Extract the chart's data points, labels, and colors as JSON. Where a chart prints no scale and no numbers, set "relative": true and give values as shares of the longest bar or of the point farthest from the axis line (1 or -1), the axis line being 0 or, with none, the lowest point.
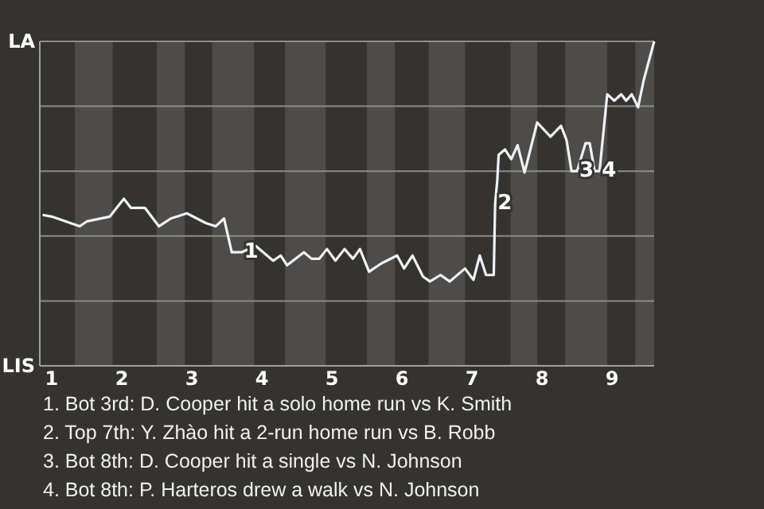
{
  "chart_data": {
    "type": "line",
    "relative": true,
    "x": [
      0.87,
      1,
      1.4,
      1.5,
      1.83,
      2.03,
      2.13,
      2.33,
      2.53,
      2.7,
      2.93,
      3.2,
      3.34,
      3.46,
      3.57,
      3.71,
      3.91,
      4.16,
      4.27,
      4.36,
      4.6,
      4.71,
      4.82,
      4.93,
      5.05,
      5.18,
      5.3,
      5.4,
      5.53,
      5.7,
      5.93,
      6.03,
      6.15,
      6.3,
      6.4,
      6.55,
      6.68,
      6.9,
      7.02,
      7.11,
      7.2,
      7.31,
      7.33,
      7.36,
      7.38,
      7.47,
      7.56,
      7.65,
      7.75,
      7.93,
      8.12,
      8.27,
      8.35,
      8.42,
      8.5,
      8.62,
      8.68,
      8.75,
      8.82,
      8.93,
      9.03,
      9.13,
      9.2,
      9.28,
      9.37,
      9.45,
      9.6
    ],
    "series": [
      {
        "color": "#eef2f5",
        "values": [
          0.465,
          0.46,
          0.43,
          0.445,
          0.46,
          0.515,
          0.487,
          0.487,
          0.43,
          0.454,
          0.47,
          0.44,
          0.43,
          0.454,
          0.35,
          0.35,
          0.37,
          0.324,
          0.34,
          0.31,
          0.35,
          0.33,
          0.33,
          0.36,
          0.324,
          0.36,
          0.33,
          0.36,
          0.29,
          0.315,
          0.34,
          0.3,
          0.34,
          0.275,
          0.26,
          0.28,
          0.26,
          0.3,
          0.265,
          0.34,
          0.28,
          0.28,
          0.5,
          0.57,
          0.65,
          0.667,
          0.637,
          0.68,
          0.596,
          0.75,
          0.706,
          0.74,
          0.695,
          0.6,
          0.6,
          0.686,
          0.686,
          0.6,
          0.6,
          0.837,
          0.817,
          0.837,
          0.817,
          0.837,
          0.797,
          0.88,
          1
        ]
      }
    ],
    "xlim": [
      0.83,
      9.6
    ],
    "xticks": [
      1,
      2,
      3,
      4,
      5,
      6,
      7,
      8,
      9
    ],
    "grid": "y",
    "marker": "none",
    "line_style": "solid",
    "bands": [
      {
        "axis": "x",
        "from": 1.33,
        "to": 1.87,
        "color": "#4d4c4a"
      },
      {
        "axis": "x",
        "from": 2.5,
        "to": 2.9,
        "color": "#4d4c4a"
      },
      {
        "axis": "x",
        "from": 3.29,
        "to": 3.89,
        "color": "#4d4c4a"
      },
      {
        "axis": "x",
        "from": 4.33,
        "to": 4.91,
        "color": "#4d4c4a"
      },
      {
        "axis": "x",
        "from": 5.5,
        "to": 5.9,
        "color": "#4d4c4a"
      },
      {
        "axis": "x",
        "from": 6.38,
        "to": 6.9,
        "color": "#4d4c4a"
      },
      {
        "axis": "x",
        "from": 7.55,
        "to": 7.93,
        "color": "#4d4c4a"
      },
      {
        "axis": "x",
        "from": 8.33,
        "to": 8.93,
        "color": "#4d4c4a"
      },
      {
        "axis": "x",
        "from": 9.33,
        "to": 9.6,
        "color": "#4d4c4a"
      }
    ],
    "annotations": [
      "LA",
      "LIS",
      {
        "text": "1",
        "x": 3.71,
        "y": 0.35
      },
      {
        "text": "2",
        "x": 7.33,
        "y": 0.5
      },
      {
        "text": "3",
        "x": 8.5,
        "y": 0.6
      },
      {
        "text": "4",
        "x": 8.82,
        "y": 0.6
      },
      "1. Bot 3rd: D. Cooper hit a solo home run vs K. Smith",
      "2. Top 7th: Y. Zhào hit a 2-run home run vs B. Robb",
      "3. Bot 8th: D. Cooper hit a single vs N. Johnson",
      "4. Bot 8th: P. Harteros drew a walk vs N. Johnson"
    ]
  }
}
